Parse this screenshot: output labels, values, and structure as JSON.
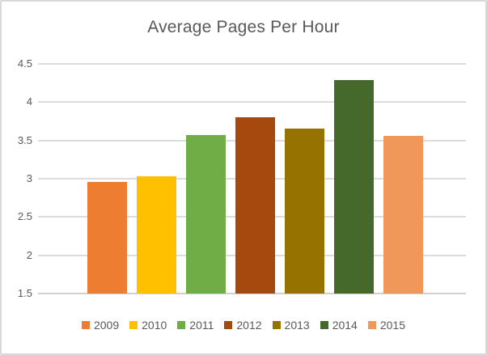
{
  "chart_data": {
    "type": "bar",
    "title": "Average Pages Per Hour",
    "categories": [
      "2009",
      "2010",
      "2011",
      "2012",
      "2013",
      "2014",
      "2015"
    ],
    "values": [
      2.96,
      3.03,
      3.57,
      3.8,
      3.65,
      4.29,
      3.56
    ],
    "bar_colors": [
      "#ED7D31",
      "#FFC000",
      "#70AD47",
      "#A5490F",
      "#967300",
      "#45682B",
      "#F0975A"
    ],
    "xlabel": "",
    "ylabel": "",
    "ylim": [
      1.5,
      4.5
    ],
    "ytick_step": 0.5,
    "ytick_labels": [
      "4.5",
      "4",
      "3.5",
      "3",
      "2.5",
      "2",
      "1.5"
    ],
    "grid": true,
    "legend_position": "bottom",
    "legend_entries": [
      "2009",
      "2010",
      "2011",
      "2012",
      "2013",
      "2014",
      "2015"
    ],
    "colors": {
      "title_text": "#595959",
      "axis_text": "#595959",
      "gridline": "#DCDCDC",
      "axis_line": "#D0D0D0",
      "chart_border": "#D9D9D9",
      "background": "#FFFFFF"
    }
  }
}
